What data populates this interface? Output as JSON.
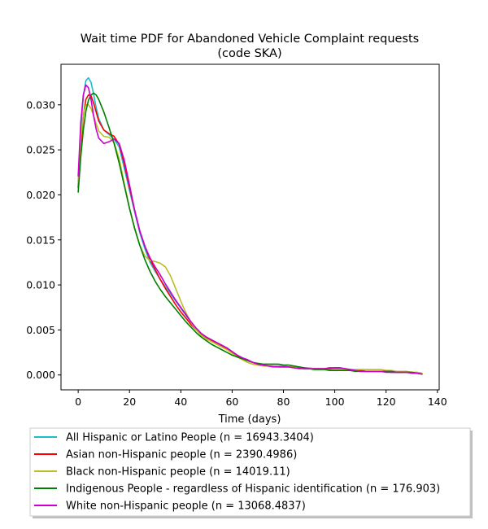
{
  "chart_data": {
    "type": "line",
    "title": "Wait time PDF for Abandoned Vehicle Complaint  requests",
    "subtitle": "(code SKA)",
    "xlabel": "Time (days)",
    "ylabel": "",
    "xlim": [
      -6.7,
      140.7
    ],
    "ylim": [
      -0.00165,
      0.0345
    ],
    "x_ticks": [
      0,
      20,
      40,
      60,
      80,
      100,
      120,
      140
    ],
    "y_ticks": [
      0.0,
      0.005,
      0.01,
      0.015,
      0.02,
      0.025,
      0.03
    ],
    "y_tick_labels": [
      "0.000",
      "0.005",
      "0.010",
      "0.015",
      "0.020",
      "0.025",
      "0.030"
    ],
    "grid": false,
    "legend_position": "below",
    "series": [
      {
        "name": "All Hispanic or Latino People (n = 16943.3404)",
        "color": "#17becf",
        "x": [
          0,
          1,
          2,
          3,
          4,
          5,
          6,
          7,
          8,
          10,
          12,
          14,
          16,
          18,
          20,
          22,
          24,
          26,
          28,
          30,
          32,
          34,
          36,
          38,
          40,
          42,
          44,
          46,
          48,
          50,
          52,
          54,
          56,
          58,
          60,
          62,
          64,
          66,
          68,
          70,
          72,
          74,
          76,
          78,
          80,
          82,
          84,
          86,
          88,
          90,
          92,
          94,
          96,
          98,
          100,
          102,
          104,
          106,
          108,
          110,
          112,
          114,
          116,
          118,
          120,
          122,
          124,
          126,
          128,
          130,
          132,
          134
        ],
        "y": [
          0.0215,
          0.0272,
          0.031,
          0.0327,
          0.033,
          0.0325,
          0.0312,
          0.0297,
          0.0285,
          0.0272,
          0.0267,
          0.0262,
          0.0253,
          0.0229,
          0.0205,
          0.0181,
          0.0158,
          0.014,
          0.0125,
          0.0115,
          0.0106,
          0.0098,
          0.009,
          0.0082,
          0.0074,
          0.0066,
          0.0058,
          0.0051,
          0.0046,
          0.0042,
          0.0039,
          0.0036,
          0.0033,
          0.003,
          0.0026,
          0.0022,
          0.0019,
          0.0016,
          0.0014,
          0.0012,
          0.0011,
          0.001,
          0.001,
          0.001,
          0.001,
          0.0009,
          0.0009,
          0.0008,
          0.0007,
          0.0007,
          0.0007,
          0.0007,
          0.0007,
          0.0007,
          0.0007,
          0.0007,
          0.0006,
          0.0006,
          0.0005,
          0.0005,
          0.0004,
          0.0004,
          0.0004,
          0.0004,
          0.0004,
          0.0003,
          0.0003,
          0.0003,
          0.0003,
          0.0003,
          0.0002,
          0.0001
        ]
      },
      {
        "name": "Asian non-Hispanic people (n = 2390.4986)",
        "color": "#ff0000",
        "x": [
          0,
          1,
          2,
          3,
          4,
          5,
          6,
          7,
          8,
          10,
          12,
          14,
          16,
          18,
          20,
          22,
          24,
          26,
          28,
          30,
          32,
          34,
          36,
          38,
          40,
          42,
          44,
          46,
          48,
          50,
          52,
          54,
          56,
          58,
          60,
          62,
          64,
          66,
          68,
          70,
          72,
          74,
          76,
          78,
          80,
          82,
          84,
          86,
          88,
          90,
          92,
          94,
          96,
          98,
          100,
          102,
          104,
          106,
          108,
          110,
          112,
          114,
          116,
          118,
          120,
          122,
          124,
          126,
          128,
          130,
          132,
          134
        ],
        "y": [
          0.0208,
          0.0255,
          0.0288,
          0.0306,
          0.0311,
          0.031,
          0.0302,
          0.0292,
          0.0282,
          0.0272,
          0.0268,
          0.0265,
          0.0256,
          0.0234,
          0.0208,
          0.0183,
          0.016,
          0.0143,
          0.0128,
          0.0117,
          0.0106,
          0.0096,
          0.0087,
          0.0078,
          0.007,
          0.0063,
          0.0056,
          0.005,
          0.0045,
          0.0041,
          0.0038,
          0.0035,
          0.0032,
          0.0029,
          0.0025,
          0.0021,
          0.0018,
          0.0016,
          0.0014,
          0.0012,
          0.0011,
          0.001,
          0.001,
          0.0009,
          0.0009,
          0.0009,
          0.0008,
          0.0008,
          0.0007,
          0.0007,
          0.0007,
          0.0007,
          0.0007,
          0.0008,
          0.0008,
          0.0008,
          0.0007,
          0.0006,
          0.0005,
          0.0005,
          0.0004,
          0.0004,
          0.0004,
          0.0004,
          0.0004,
          0.0003,
          0.0003,
          0.0003,
          0.0003,
          0.0003,
          0.0002,
          0.0001
        ]
      },
      {
        "name": "Black non-Hispanic people (n = 14019.11)",
        "color": "#bcbd22",
        "x": [
          0,
          1,
          2,
          3,
          4,
          5,
          6,
          7,
          8,
          10,
          12,
          14,
          16,
          18,
          20,
          22,
          24,
          26,
          28,
          30,
          32,
          34,
          36,
          38,
          40,
          42,
          44,
          46,
          48,
          50,
          52,
          54,
          56,
          58,
          60,
          62,
          64,
          66,
          68,
          70,
          72,
          74,
          76,
          78,
          80,
          82,
          84,
          86,
          88,
          90,
          92,
          94,
          96,
          98,
          100,
          102,
          104,
          106,
          108,
          110,
          112,
          114,
          116,
          118,
          120,
          122,
          124,
          126,
          128,
          130,
          132,
          134
        ],
        "y": [
          0.0214,
          0.0262,
          0.029,
          0.03,
          0.03,
          0.0296,
          0.0288,
          0.0279,
          0.0271,
          0.0265,
          0.0264,
          0.0258,
          0.024,
          0.0212,
          0.0185,
          0.0162,
          0.0144,
          0.0132,
          0.0127,
          0.0126,
          0.0124,
          0.012,
          0.011,
          0.0096,
          0.0082,
          0.0069,
          0.0058,
          0.005,
          0.0044,
          0.004,
          0.0037,
          0.0034,
          0.0031,
          0.0028,
          0.0024,
          0.002,
          0.0017,
          0.0014,
          0.0012,
          0.0011,
          0.001,
          0.001,
          0.001,
          0.001,
          0.0009,
          0.0009,
          0.0009,
          0.0009,
          0.0008,
          0.0008,
          0.0007,
          0.0007,
          0.0007,
          0.0006,
          0.0006,
          0.0006,
          0.0006,
          0.0006,
          0.0006,
          0.0006,
          0.0006,
          0.0006,
          0.0006,
          0.0006,
          0.0005,
          0.0005,
          0.0004,
          0.0004,
          0.0004,
          0.0003,
          0.0003,
          0.0002
        ]
      },
      {
        "name": "Indigenous People - regardless of Hispanic identification (n = 176.903)",
        "color": "#008000",
        "x": [
          0,
          1,
          2,
          3,
          4,
          5,
          6,
          7,
          8,
          10,
          12,
          14,
          16,
          18,
          20,
          22,
          24,
          26,
          28,
          30,
          32,
          34,
          36,
          38,
          40,
          42,
          44,
          46,
          48,
          50,
          52,
          54,
          56,
          58,
          60,
          62,
          64,
          66,
          68,
          70,
          72,
          74,
          76,
          78,
          80,
          82,
          84,
          86,
          88,
          90,
          92,
          94,
          96,
          98,
          100,
          102,
          104,
          106,
          108,
          110,
          112,
          114,
          116,
          118,
          120,
          122,
          124,
          126,
          128,
          130,
          132,
          134
        ],
        "y": [
          0.0203,
          0.0242,
          0.0272,
          0.0293,
          0.0305,
          0.0311,
          0.0313,
          0.0311,
          0.0306,
          0.0292,
          0.0275,
          0.0257,
          0.0235,
          0.021,
          0.0185,
          0.0163,
          0.0144,
          0.0128,
          0.0115,
          0.0104,
          0.0095,
          0.0087,
          0.008,
          0.0073,
          0.0066,
          0.0059,
          0.0053,
          0.0047,
          0.0042,
          0.0038,
          0.0034,
          0.0031,
          0.0028,
          0.0025,
          0.0022,
          0.002,
          0.0018,
          0.0016,
          0.0014,
          0.0013,
          0.0012,
          0.0012,
          0.0012,
          0.0012,
          0.0011,
          0.0011,
          0.001,
          0.0009,
          0.0008,
          0.0007,
          0.0006,
          0.0006,
          0.0006,
          0.0005,
          0.0005,
          0.0005,
          0.0005,
          0.0005,
          0.0004,
          0.0004,
          0.0004,
          0.0004,
          0.0004,
          0.0004,
          0.0004,
          0.0004,
          0.0003,
          0.0003,
          0.0003,
          0.0003,
          0.0002,
          0.0001
        ]
      },
      {
        "name": "White non-Hispanic people (n = 13068.4837)",
        "color": "#cc00cc",
        "x": [
          0,
          1,
          2,
          3,
          4,
          5,
          6,
          7,
          8,
          10,
          12,
          14,
          16,
          18,
          20,
          22,
          24,
          26,
          28,
          30,
          32,
          34,
          36,
          38,
          40,
          42,
          44,
          46,
          48,
          50,
          52,
          54,
          56,
          58,
          60,
          62,
          64,
          66,
          68,
          70,
          72,
          74,
          76,
          78,
          80,
          82,
          84,
          86,
          88,
          90,
          92,
          94,
          96,
          98,
          100,
          102,
          104,
          106,
          108,
          110,
          112,
          114,
          116,
          118,
          120,
          122,
          124,
          126,
          128,
          130,
          132,
          134
        ],
        "y": [
          0.0221,
          0.028,
          0.0311,
          0.0322,
          0.0319,
          0.0306,
          0.0288,
          0.0273,
          0.0263,
          0.0257,
          0.0259,
          0.0262,
          0.0257,
          0.0238,
          0.0211,
          0.0183,
          0.016,
          0.0143,
          0.013,
          0.012,
          0.0111,
          0.0101,
          0.0092,
          0.0083,
          0.0075,
          0.0067,
          0.0059,
          0.0052,
          0.0046,
          0.0042,
          0.0039,
          0.0036,
          0.0033,
          0.003,
          0.0026,
          0.0022,
          0.0019,
          0.0017,
          0.0014,
          0.0012,
          0.0011,
          0.001,
          0.0009,
          0.0009,
          0.0009,
          0.0009,
          0.0008,
          0.0007,
          0.0007,
          0.0007,
          0.0007,
          0.0007,
          0.0007,
          0.0007,
          0.0008,
          0.0008,
          0.0007,
          0.0006,
          0.0005,
          0.0004,
          0.0004,
          0.0004,
          0.0004,
          0.0004,
          0.0003,
          0.0003,
          0.0003,
          0.0003,
          0.0003,
          0.0002,
          0.0002,
          0.0001
        ]
      }
    ]
  }
}
